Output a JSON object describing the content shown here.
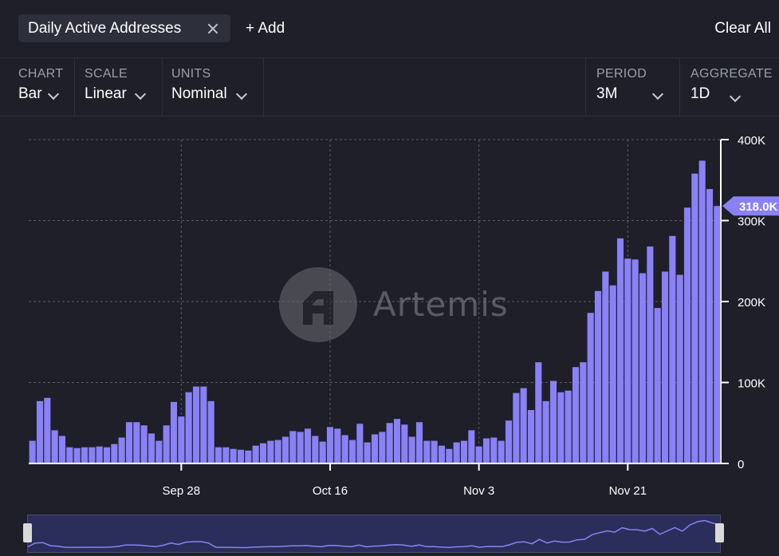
{
  "topbar": {
    "metric_chip": "Daily Active Addresses",
    "add_label": "+ Add",
    "clear_label": "Clear All"
  },
  "controls": {
    "chart": {
      "label": "CHART",
      "value": "Bar"
    },
    "scale": {
      "label": "SCALE",
      "value": "Linear"
    },
    "units": {
      "label": "UNITS",
      "value": "Nominal"
    },
    "period": {
      "label": "PERIOD",
      "value": "3M"
    },
    "aggregate": {
      "label": "AGGREGATE",
      "value": "1D"
    }
  },
  "watermark": {
    "text": "Artemis"
  },
  "colors": {
    "bar": "#8981f5",
    "background": "#1e1f28",
    "grid": "#5a5c66",
    "nav_line": "#8981f5"
  },
  "chart_data": {
    "type": "bar",
    "title": "",
    "xlabel": "",
    "ylabel": "",
    "ylim": [
      0,
      400000
    ],
    "grid": true,
    "y_ticks": [
      "0",
      "100K",
      "200K",
      "300K",
      "400K"
    ],
    "y_tick_values": [
      0,
      100000,
      200000,
      300000,
      400000
    ],
    "x_ticks": [
      {
        "label": "Sep 28",
        "index": 20
      },
      {
        "label": "Oct 16",
        "index": 40
      },
      {
        "label": "Nov 3",
        "index": 60
      },
      {
        "label": "Nov 21",
        "index": 80
      }
    ],
    "current_value_label": "318.0K",
    "current_value": 318000,
    "values": [
      28000,
      77000,
      81000,
      41000,
      34000,
      20000,
      19000,
      20000,
      20000,
      21000,
      20000,
      24000,
      32000,
      51000,
      51000,
      47000,
      37000,
      28000,
      47000,
      76000,
      58000,
      88000,
      95000,
      95000,
      77000,
      20000,
      20000,
      18000,
      17000,
      16000,
      22000,
      25000,
      28000,
      29000,
      33000,
      40000,
      39000,
      43000,
      34000,
      27000,
      45000,
      43000,
      35000,
      29000,
      49000,
      26000,
      36000,
      39000,
      50000,
      55000,
      48000,
      33000,
      51000,
      28000,
      28000,
      22000,
      18000,
      26000,
      28000,
      41000,
      21000,
      31000,
      32000,
      28000,
      53000,
      87000,
      93000,
      66000,
      125000,
      77000,
      102000,
      88000,
      90000,
      119000,
      125000,
      186000,
      213000,
      237000,
      220000,
      278000,
      253000,
      252000,
      235000,
      268000,
      192000,
      237000,
      281000,
      233000,
      316000,
      358000,
      374000,
      339000,
      318000
    ]
  }
}
